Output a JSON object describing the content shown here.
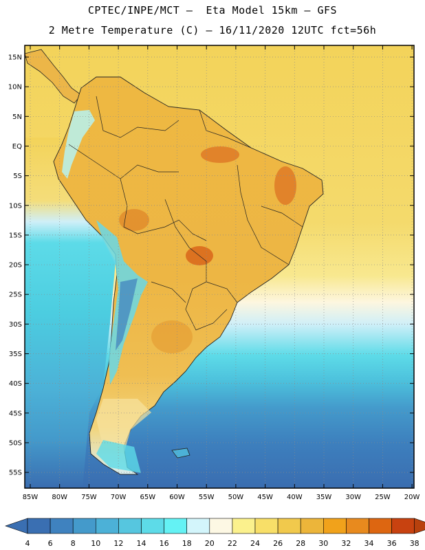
{
  "header": {
    "line1": "CPTEC/INPE/MCT –  Eta Model 15km – GFS",
    "line2": "2 Metre Temperature (C) – 16/11/2020 12UTC fct=56h"
  },
  "map": {
    "lat_labels": [
      "15N",
      "10N",
      "5N",
      "EQ",
      "5S",
      "10S",
      "15S",
      "20S",
      "25S",
      "30S",
      "35S",
      "40S",
      "45S",
      "50S",
      "55S"
    ],
    "lon_labels": [
      "85W",
      "80W",
      "75W",
      "70W",
      "65W",
      "60W",
      "55W",
      "50W",
      "45W",
      "40W",
      "35W",
      "30W",
      "25W",
      "20W"
    ]
  },
  "colorbar": {
    "values": [
      "4",
      "6",
      "8",
      "10",
      "12",
      "14",
      "16",
      "18",
      "20",
      "22",
      "24",
      "26",
      "28",
      "30",
      "32",
      "34",
      "36",
      "38"
    ],
    "colors": [
      "#3a6fb2",
      "#3f82bf",
      "#449acb",
      "#4cb1d7",
      "#56c6df",
      "#5ddbe8",
      "#64f2f4",
      "#d3f5fb",
      "#fdf8e4",
      "#fbf18d",
      "#f8df68",
      "#f1c94c",
      "#ecb53a",
      "#f1a21b",
      "#e88a1e",
      "#dd6611",
      "#c84210"
    ],
    "left_arrow_color": "#3a6fb2",
    "right_arrow_color": "#b8410d"
  },
  "palette": {
    "ocean_north": "#f3d560",
    "land_base": "#eab546",
    "hot": "#de7a26",
    "andes_cold": "#67e8ee",
    "deep_south": "#3a6fb2"
  }
}
